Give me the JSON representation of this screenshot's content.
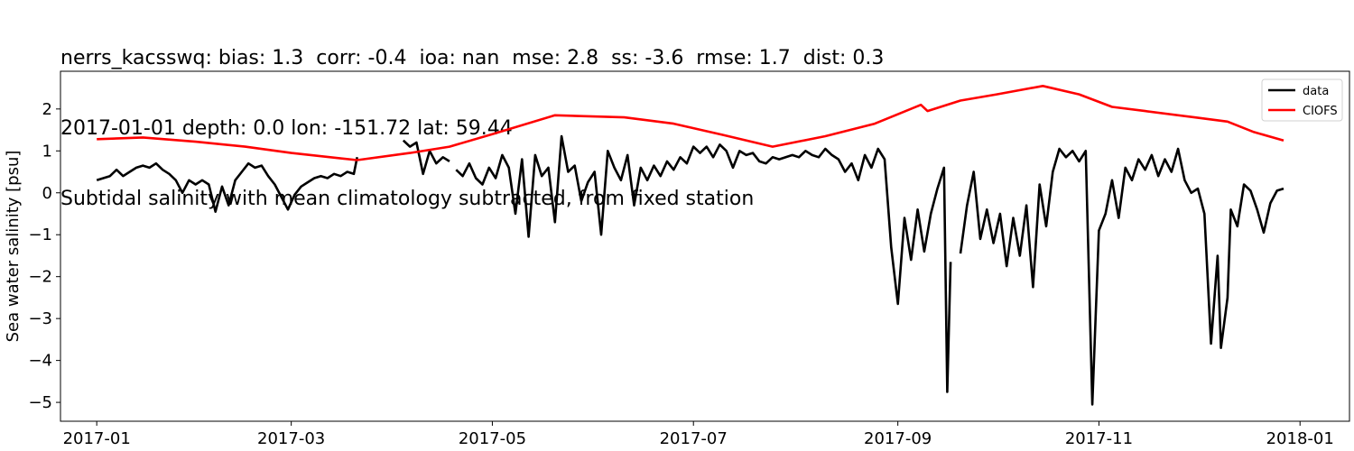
{
  "titles": {
    "line1": "nerrs_kacsswq: bias: 1.3  corr: -0.4  ioa: nan  mse: 2.8  ss: -3.6  rmse: 1.7  dist: 0.3",
    "line2": "2017-01-01 depth: 0.0 lon: -151.72 lat: 59.44",
    "line3": "Subtidal salinity with mean climatology subtracted, from fixed station"
  },
  "chart_data": {
    "type": "line",
    "xlabel": "",
    "ylabel": "Sea water salinity [psu]",
    "x_ticks": [
      "2017-01",
      "2017-03",
      "2017-05",
      "2017-07",
      "2017-09",
      "2017-11",
      "2018-01"
    ],
    "x_tick_dates": [
      "2017-01-01",
      "2017-03-01",
      "2017-05-01",
      "2017-07-01",
      "2017-09-01",
      "2017-11-01",
      "2018-01-01"
    ],
    "y_ticks": [
      2,
      1,
      0,
      -1,
      -2,
      -3,
      -4,
      -5
    ],
    "ylim": [
      -5.45,
      2.9
    ],
    "xlim": [
      "2016-12-21",
      "2018-01-16"
    ],
    "legend_position": "upper-right",
    "grid": false,
    "colors": {
      "data": "#000000",
      "CIOFS": "#ff0000"
    },
    "series": [
      {
        "name": "data",
        "segments": [
          [
            [
              "2017-01-01",
              0.3
            ],
            [
              "2017-01-03",
              0.35
            ],
            [
              "2017-01-05",
              0.4
            ],
            [
              "2017-01-07",
              0.55
            ],
            [
              "2017-01-09",
              0.4
            ],
            [
              "2017-01-11",
              0.5
            ],
            [
              "2017-01-13",
              0.6
            ],
            [
              "2017-01-15",
              0.65
            ],
            [
              "2017-01-17",
              0.6
            ],
            [
              "2017-01-19",
              0.7
            ],
            [
              "2017-01-21",
              0.55
            ],
            [
              "2017-01-23",
              0.45
            ],
            [
              "2017-01-25",
              0.3
            ],
            [
              "2017-01-27",
              0.0
            ],
            [
              "2017-01-29",
              0.3
            ],
            [
              "2017-01-31",
              0.2
            ],
            [
              "2017-02-02",
              0.3
            ],
            [
              "2017-02-04",
              0.2
            ],
            [
              "2017-02-06",
              -0.45
            ],
            [
              "2017-02-08",
              0.15
            ],
            [
              "2017-02-10",
              -0.3
            ],
            [
              "2017-02-12",
              0.3
            ],
            [
              "2017-02-14",
              0.5
            ],
            [
              "2017-02-16",
              0.7
            ],
            [
              "2017-02-18",
              0.6
            ],
            [
              "2017-02-20",
              0.65
            ],
            [
              "2017-02-22",
              0.4
            ],
            [
              "2017-02-24",
              0.2
            ],
            [
              "2017-02-26",
              -0.1
            ],
            [
              "2017-02-28",
              -0.4
            ],
            [
              "2017-03-02",
              -0.05
            ],
            [
              "2017-03-04",
              0.15
            ],
            [
              "2017-03-06",
              0.25
            ],
            [
              "2017-03-08",
              0.35
            ],
            [
              "2017-03-10",
              0.4
            ],
            [
              "2017-03-12",
              0.35
            ],
            [
              "2017-03-14",
              0.45
            ],
            [
              "2017-03-16",
              0.4
            ],
            [
              "2017-03-18",
              0.5
            ],
            [
              "2017-03-20",
              0.45
            ],
            [
              "2017-03-21",
              0.85
            ]
          ],
          [
            [
              "2017-04-04",
              1.25
            ],
            [
              "2017-04-06",
              1.1
            ],
            [
              "2017-04-08",
              1.2
            ],
            [
              "2017-04-10",
              0.45
            ],
            [
              "2017-04-12",
              1.0
            ],
            [
              "2017-04-14",
              0.7
            ],
            [
              "2017-04-16",
              0.85
            ],
            [
              "2017-04-18",
              0.75
            ]
          ],
          [
            [
              "2017-04-20",
              0.55
            ],
            [
              "2017-04-22",
              0.4
            ],
            [
              "2017-04-24",
              0.7
            ],
            [
              "2017-04-26",
              0.35
            ],
            [
              "2017-04-28",
              0.2
            ],
            [
              "2017-04-30",
              0.6
            ],
            [
              "2017-05-02",
              0.35
            ],
            [
              "2017-05-04",
              0.9
            ],
            [
              "2017-05-06",
              0.6
            ],
            [
              "2017-05-08",
              -0.5
            ],
            [
              "2017-05-10",
              0.8
            ],
            [
              "2017-05-12",
              -1.05
            ],
            [
              "2017-05-14",
              0.9
            ],
            [
              "2017-05-16",
              0.4
            ],
            [
              "2017-05-18",
              0.6
            ],
            [
              "2017-05-20",
              -0.7
            ],
            [
              "2017-05-22",
              1.35
            ],
            [
              "2017-05-24",
              0.5
            ],
            [
              "2017-05-26",
              0.65
            ],
            [
              "2017-05-28",
              -0.2
            ],
            [
              "2017-05-30",
              0.25
            ],
            [
              "2017-06-01",
              0.5
            ],
            [
              "2017-06-03",
              -1.0
            ],
            [
              "2017-06-05",
              1.0
            ],
            [
              "2017-06-07",
              0.6
            ],
            [
              "2017-06-09",
              0.3
            ],
            [
              "2017-06-11",
              0.9
            ],
            [
              "2017-06-13",
              -0.3
            ],
            [
              "2017-06-15",
              0.6
            ],
            [
              "2017-06-17",
              0.3
            ],
            [
              "2017-06-19",
              0.65
            ],
            [
              "2017-06-21",
              0.4
            ],
            [
              "2017-06-23",
              0.75
            ],
            [
              "2017-06-25",
              0.55
            ],
            [
              "2017-06-27",
              0.85
            ],
            [
              "2017-06-29",
              0.7
            ],
            [
              "2017-07-01",
              1.1
            ],
            [
              "2017-07-03",
              0.95
            ],
            [
              "2017-07-05",
              1.1
            ],
            [
              "2017-07-07",
              0.85
            ],
            [
              "2017-07-09",
              1.15
            ],
            [
              "2017-07-11",
              1.0
            ],
            [
              "2017-07-13",
              0.6
            ],
            [
              "2017-07-15",
              1.0
            ],
            [
              "2017-07-17",
              0.9
            ],
            [
              "2017-07-19",
              0.95
            ],
            [
              "2017-07-21",
              0.75
            ],
            [
              "2017-07-23",
              0.7
            ],
            [
              "2017-07-25",
              0.85
            ],
            [
              "2017-07-27",
              0.8
            ],
            [
              "2017-07-29",
              0.85
            ],
            [
              "2017-07-31",
              0.9
            ],
            [
              "2017-08-02",
              0.85
            ],
            [
              "2017-08-04",
              1.0
            ],
            [
              "2017-08-06",
              0.9
            ],
            [
              "2017-08-08",
              0.85
            ],
            [
              "2017-08-10",
              1.05
            ],
            [
              "2017-08-12",
              0.9
            ],
            [
              "2017-08-14",
              0.8
            ],
            [
              "2017-08-16",
              0.5
            ],
            [
              "2017-08-18",
              0.7
            ],
            [
              "2017-08-20",
              0.3
            ],
            [
              "2017-08-22",
              0.9
            ],
            [
              "2017-08-24",
              0.6
            ],
            [
              "2017-08-26",
              1.05
            ],
            [
              "2017-08-28",
              0.8
            ],
            [
              "2017-08-30",
              -1.3
            ],
            [
              "2017-09-01",
              -2.65
            ],
            [
              "2017-09-03",
              -0.6
            ],
            [
              "2017-09-05",
              -1.6
            ],
            [
              "2017-09-07",
              -0.4
            ],
            [
              "2017-09-09",
              -1.4
            ],
            [
              "2017-09-11",
              -0.5
            ],
            [
              "2017-09-13",
              0.1
            ],
            [
              "2017-09-15",
              0.6
            ],
            [
              "2017-09-16",
              -4.75
            ],
            [
              "2017-09-17",
              -1.65
            ]
          ],
          [
            [
              "2017-09-20",
              -1.45
            ],
            [
              "2017-09-22",
              -0.3
            ],
            [
              "2017-09-24",
              0.5
            ],
            [
              "2017-09-26",
              -1.1
            ],
            [
              "2017-09-28",
              -0.4
            ],
            [
              "2017-09-30",
              -1.2
            ],
            [
              "2017-10-02",
              -0.5
            ],
            [
              "2017-10-04",
              -1.75
            ],
            [
              "2017-10-06",
              -0.6
            ],
            [
              "2017-10-08",
              -1.5
            ],
            [
              "2017-10-10",
              -0.3
            ],
            [
              "2017-10-12",
              -2.25
            ],
            [
              "2017-10-14",
              0.2
            ],
            [
              "2017-10-16",
              -0.8
            ],
            [
              "2017-10-18",
              0.5
            ],
            [
              "2017-10-20",
              1.05
            ],
            [
              "2017-10-22",
              0.85
            ],
            [
              "2017-10-24",
              1.0
            ],
            [
              "2017-10-26",
              0.75
            ],
            [
              "2017-10-28",
              1.0
            ],
            [
              "2017-10-30",
              -5.05
            ],
            [
              "2017-11-01",
              -0.9
            ],
            [
              "2017-11-03",
              -0.5
            ],
            [
              "2017-11-05",
              0.3
            ],
            [
              "2017-11-07",
              -0.6
            ],
            [
              "2017-11-09",
              0.6
            ],
            [
              "2017-11-11",
              0.3
            ],
            [
              "2017-11-13",
              0.8
            ],
            [
              "2017-11-15",
              0.55
            ],
            [
              "2017-11-17",
              0.9
            ],
            [
              "2017-11-19",
              0.4
            ],
            [
              "2017-11-21",
              0.8
            ],
            [
              "2017-11-23",
              0.5
            ],
            [
              "2017-11-25",
              1.05
            ],
            [
              "2017-11-27",
              0.3
            ],
            [
              "2017-11-29",
              0.0
            ],
            [
              "2017-12-01",
              0.1
            ],
            [
              "2017-12-03",
              -0.5
            ],
            [
              "2017-12-05",
              -3.6
            ],
            [
              "2017-12-07",
              -1.5
            ],
            [
              "2017-12-08",
              -3.7
            ],
            [
              "2017-12-10",
              -2.5
            ],
            [
              "2017-12-11",
              -0.4
            ],
            [
              "2017-12-13",
              -0.8
            ],
            [
              "2017-12-15",
              0.2
            ],
            [
              "2017-12-17",
              0.05
            ],
            [
              "2017-12-19",
              -0.4
            ],
            [
              "2017-12-21",
              -0.95
            ],
            [
              "2017-12-23",
              -0.25
            ],
            [
              "2017-12-25",
              0.05
            ],
            [
              "2017-12-27",
              0.1
            ]
          ]
        ]
      },
      {
        "name": "CIOFS",
        "segments": [
          [
            [
              "2017-01-01",
              1.28
            ],
            [
              "2017-01-15",
              1.32
            ],
            [
              "2017-01-31",
              1.22
            ],
            [
              "2017-02-15",
              1.1
            ],
            [
              "2017-03-01",
              0.95
            ],
            [
              "2017-03-21",
              0.78
            ],
            [
              "2017-04-06",
              0.95
            ],
            [
              "2017-04-18",
              1.1
            ],
            [
              "2017-05-01",
              1.4
            ],
            [
              "2017-05-20",
              1.85
            ],
            [
              "2017-06-10",
              1.8
            ],
            [
              "2017-06-25",
              1.65
            ],
            [
              "2017-07-10",
              1.38
            ],
            [
              "2017-07-25",
              1.1
            ],
            [
              "2017-08-10",
              1.35
            ],
            [
              "2017-08-25",
              1.65
            ],
            [
              "2017-09-08",
              2.1
            ],
            [
              "2017-09-10",
              1.95
            ],
            [
              "2017-09-20",
              2.2
            ],
            [
              "2017-10-01",
              2.35
            ],
            [
              "2017-10-15",
              2.55
            ],
            [
              "2017-10-26",
              2.35
            ],
            [
              "2017-11-05",
              2.05
            ],
            [
              "2017-11-15",
              1.95
            ],
            [
              "2017-11-30",
              1.8
            ],
            [
              "2017-12-10",
              1.7
            ],
            [
              "2017-12-18",
              1.45
            ],
            [
              "2017-12-27",
              1.25
            ]
          ]
        ]
      }
    ]
  }
}
